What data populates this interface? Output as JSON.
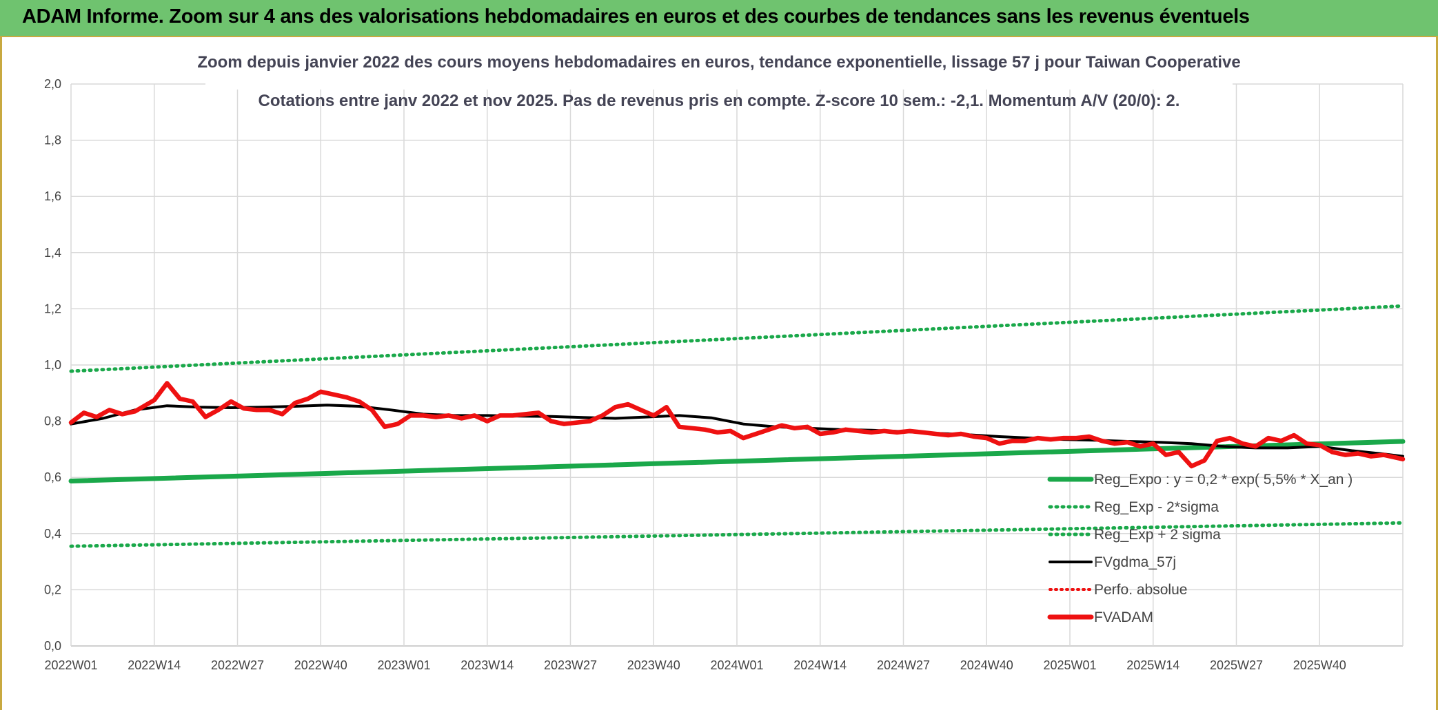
{
  "banner": {
    "title": "ADAM Informe. Zoom sur 4 ans des valorisations hebdomadaires en euros et des courbes de tendances sans les revenus éventuels"
  },
  "colors": {
    "banner_bg": "#6fc36f",
    "green": "#1aa84a",
    "black": "#000000",
    "red": "#ee1111",
    "grid": "#d9d9d9",
    "title_text": "#445566"
  },
  "chart_data": {
    "type": "line",
    "title_line1": "Zoom depuis janvier 2022 des cours moyens hebdomadaires en euros, tendance exponentielle, lissage 57 j pour Taiwan Cooperative",
    "title_line2": "Cotations entre janv 2022 et nov 2025. Pas de revenus pris en compte. Z-score 10 sem.: -2,1. Momentum A/V (20/0): 2.",
    "ylim": [
      0,
      2.0
    ],
    "y_ticks": [
      "0,0",
      "0,2",
      "0,4",
      "0,6",
      "0,8",
      "1,0",
      "1,2",
      "1,4",
      "1,6",
      "1,8",
      "2,0"
    ],
    "x_ticks": [
      "2022W01",
      "2022W14",
      "2022W27",
      "2022W40",
      "2023W01",
      "2023W14",
      "2023W27",
      "2023W40",
      "2024W01",
      "2024W14",
      "2024W27",
      "2024W40",
      "2025W01",
      "2025W14",
      "2025W27",
      "2025W40"
    ],
    "n_weeks": 209,
    "legend": [
      {
        "label": "Reg_Expo : y = 0,2 * exp( 5,5% *  X_an )",
        "style": "solid-green"
      },
      {
        "label": "Reg_Exp - 2*sigma",
        "style": "dotted-green"
      },
      {
        "label": "Reg_Exp + 2 sigma",
        "style": "dotted-green"
      },
      {
        "label": "FVgdma_57j",
        "style": "solid-black"
      },
      {
        "label": "Perfo. absolue",
        "style": "dotted-red"
      },
      {
        "label": "FVADAM",
        "style": "solid-red"
      }
    ],
    "series": [
      {
        "name": "Reg_Expo",
        "x": [
          0,
          208
        ],
        "values": [
          0.587,
          0.728
        ]
      },
      {
        "name": "Reg_Exp - 2*sigma",
        "x": [
          0,
          208
        ],
        "values": [
          0.355,
          0.438
        ]
      },
      {
        "name": "Reg_Exp + 2 sigma",
        "x": [
          0,
          208
        ],
        "values": [
          0.978,
          1.21
        ]
      },
      {
        "name": "FVgdma_57j",
        "x": [
          0,
          5,
          10,
          15,
          20,
          25,
          30,
          35,
          40,
          45,
          50,
          55,
          60,
          65,
          70,
          75,
          80,
          85,
          90,
          95,
          100,
          105,
          110,
          115,
          120,
          125,
          130,
          135,
          140,
          145,
          150,
          155,
          160,
          165,
          170,
          175,
          180,
          185,
          190,
          195,
          200,
          205,
          208
        ],
        "values": [
          0.79,
          0.81,
          0.84,
          0.855,
          0.85,
          0.848,
          0.85,
          0.853,
          0.857,
          0.853,
          0.84,
          0.825,
          0.82,
          0.82,
          0.818,
          0.817,
          0.813,
          0.81,
          0.815,
          0.82,
          0.812,
          0.79,
          0.78,
          0.775,
          0.77,
          0.768,
          0.763,
          0.757,
          0.752,
          0.745,
          0.74,
          0.735,
          0.732,
          0.728,
          0.725,
          0.72,
          0.71,
          0.705,
          0.705,
          0.71,
          0.695,
          0.683,
          0.675
        ]
      },
      {
        "name": "FVADAM",
        "x": [
          0,
          2,
          4,
          6,
          8,
          10,
          13,
          15,
          17,
          19,
          21,
          23,
          25,
          27,
          29,
          31,
          33,
          35,
          37,
          39,
          41,
          43,
          45,
          47,
          49,
          51,
          53,
          55,
          57,
          59,
          61,
          63,
          65,
          67,
          69,
          71,
          73,
          75,
          77,
          79,
          81,
          83,
          85,
          87,
          89,
          91,
          93,
          95,
          97,
          99,
          101,
          103,
          105,
          107,
          109,
          111,
          113,
          115,
          117,
          119,
          121,
          123,
          125,
          127,
          129,
          131,
          133,
          135,
          137,
          139,
          141,
          143,
          145,
          147,
          149,
          151,
          153,
          155,
          157,
          159,
          161,
          163,
          165,
          167,
          169,
          171,
          173,
          175,
          177,
          179,
          181,
          183,
          185,
          187,
          189,
          191,
          193,
          195,
          197,
          199,
          201,
          203,
          205,
          208
        ],
        "values": [
          0.795,
          0.83,
          0.815,
          0.84,
          0.825,
          0.835,
          0.875,
          0.935,
          0.88,
          0.87,
          0.815,
          0.84,
          0.87,
          0.845,
          0.84,
          0.84,
          0.825,
          0.865,
          0.88,
          0.905,
          0.895,
          0.885,
          0.87,
          0.84,
          0.78,
          0.79,
          0.82,
          0.82,
          0.815,
          0.82,
          0.81,
          0.82,
          0.8,
          0.82,
          0.82,
          0.825,
          0.83,
          0.8,
          0.79,
          0.795,
          0.8,
          0.82,
          0.85,
          0.86,
          0.84,
          0.82,
          0.85,
          0.78,
          0.775,
          0.77,
          0.76,
          0.765,
          0.74,
          0.755,
          0.77,
          0.785,
          0.775,
          0.78,
          0.755,
          0.76,
          0.77,
          0.765,
          0.76,
          0.765,
          0.76,
          0.765,
          0.76,
          0.755,
          0.75,
          0.755,
          0.745,
          0.74,
          0.72,
          0.73,
          0.73,
          0.74,
          0.735,
          0.74,
          0.74,
          0.745,
          0.73,
          0.72,
          0.725,
          0.71,
          0.72,
          0.68,
          0.69,
          0.64,
          0.66,
          0.73,
          0.74,
          0.72,
          0.71,
          0.74,
          0.73,
          0.75,
          0.72,
          0.715,
          0.69,
          0.68,
          0.685,
          0.675,
          0.68,
          0.665
        ]
      }
    ]
  }
}
